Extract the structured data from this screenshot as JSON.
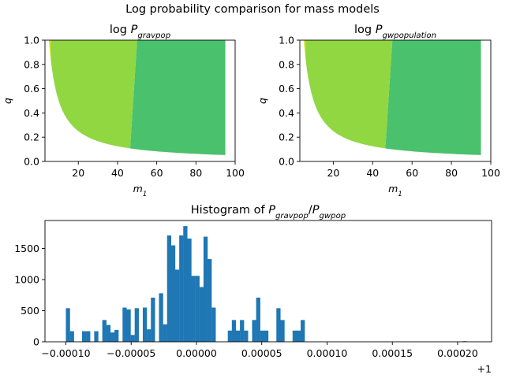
{
  "figure": {
    "suptitle": "Log probability comparison for mass models"
  },
  "chart_data": [
    {
      "type": "heatmap",
      "name": "left-panel",
      "title_prefix": "log ",
      "title_symbol": "P",
      "title_subscript": "gravpop",
      "xlabel_symbol": "m",
      "xlabel_subscript": "1",
      "ylabel": "q",
      "xlim": [
        3,
        100
      ],
      "ylim": [
        0,
        1
      ],
      "xticks": [
        20,
        40,
        60,
        80,
        100
      ],
      "yticks": [
        0.0,
        0.2,
        0.4,
        0.6,
        0.8,
        1.0
      ],
      "xtick_labels": [
        "20",
        "40",
        "60",
        "80",
        "100"
      ],
      "ytick_labels": [
        "0.0",
        "0.2",
        "0.4",
        "0.6",
        "0.8",
        "1.0"
      ],
      "mass_range": [
        5,
        95
      ],
      "q_boundary": "q_min = 5 / m1",
      "regions": [
        {
          "m1_from": 5,
          "m1_to": 6,
          "color": "#d0e11c"
        },
        {
          "m1_from": 6,
          "m1_to": 50,
          "boundary_at_q0": 46,
          "color": "#91d742"
        },
        {
          "m1_from": 50,
          "m1_to": 95,
          "boundary_at_q0": 46,
          "color": "#4ac16d"
        }
      ]
    },
    {
      "type": "heatmap",
      "name": "right-panel",
      "title_prefix": "log ",
      "title_symbol": "P",
      "title_subscript": "gwpopulation",
      "xlabel_symbol": "m",
      "xlabel_subscript": "1",
      "ylabel": "q",
      "xlim": [
        3,
        100
      ],
      "ylim": [
        0,
        1
      ],
      "xticks": [
        20,
        40,
        60,
        80,
        100
      ],
      "yticks": [
        0.0,
        0.2,
        0.4,
        0.6,
        0.8,
        1.0
      ],
      "xtick_labels": [
        "20",
        "40",
        "60",
        "80",
        "100"
      ],
      "ytick_labels": [
        "0.0",
        "0.2",
        "0.4",
        "0.6",
        "0.8",
        "1.0"
      ],
      "mass_range": [
        5,
        95
      ],
      "q_boundary": "q_min = 5 / m1",
      "regions": [
        {
          "m1_from": 5,
          "m1_to": 6,
          "color": "#d0e11c"
        },
        {
          "m1_from": 6,
          "m1_to": 50,
          "boundary_at_q0": 46,
          "color": "#91d742"
        },
        {
          "m1_from": 50,
          "m1_to": 95,
          "boundary_at_q0": 46,
          "color": "#4ac16d"
        }
      ]
    },
    {
      "type": "bar",
      "name": "histogram",
      "title_prefix": "Histogram of ",
      "title_symbol_1": "P",
      "title_subscript_1": "gravpop",
      "title_separator": "/",
      "title_symbol_2": "P",
      "title_subscript_2": "gwpop",
      "offset_label": "+1",
      "bar_color": "#1f77b4",
      "xlim": [
        -0.000116,
        0.000226
      ],
      "ylim": [
        0,
        1950
      ],
      "xticks": [
        -0.0001,
        -5e-05,
        0,
        5e-05,
        0.0001,
        0.00015,
        0.0002
      ],
      "xtick_labels": [
        "−0.00010",
        "−0.00005",
        "0.00000",
        "0.00005",
        "0.00010",
        "0.00015",
        "0.00020"
      ],
      "yticks": [
        0,
        500,
        1000,
        1500
      ],
      "ytick_labels": [
        "0",
        "500",
        "1000",
        "1500"
      ],
      "bin_start": -0.0001,
      "bin_width": 3.1e-06,
      "values": [
        540,
        170,
        0,
        0,
        170,
        170,
        0,
        170,
        0,
        350,
        270,
        150,
        190,
        0,
        550,
        520,
        110,
        540,
        0,
        550,
        200,
        710,
        0,
        780,
        280,
        1710,
        1550,
        1160,
        1710,
        1860,
        1660,
        1060,
        1060,
        880,
        1690,
        1330,
        550,
        0,
        0,
        0,
        180,
        350,
        180,
        350,
        180,
        0,
        350,
        710,
        180,
        180,
        0,
        0,
        540,
        350,
        0,
        0,
        180,
        180,
        350,
        0,
        0,
        0,
        0,
        0,
        0,
        0,
        0,
        0,
        0,
        0,
        0,
        0,
        0,
        0,
        0,
        0,
        0,
        0,
        0,
        0,
        0,
        0,
        0,
        0,
        0,
        0,
        0,
        0,
        0,
        0,
        0,
        0,
        0,
        0,
        0,
        0,
        0,
        0,
        10,
        0
      ]
    }
  ]
}
